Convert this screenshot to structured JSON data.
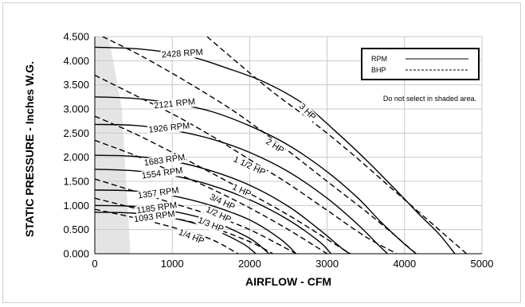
{
  "chart_data": {
    "type": "line",
    "xlabel": "AIRFLOW - CFM",
    "ylabel": "STATIC PRESSURE - Inches W.G.",
    "xlim": [
      0,
      5000
    ],
    "ylim": [
      0,
      4.5
    ],
    "x_ticks": [
      "0",
      "1000",
      "2000",
      "3000",
      "4000",
      "5000"
    ],
    "y_ticks": [
      "0.000",
      "0.500",
      "1.000",
      "1.500",
      "2.000",
      "2.500",
      "3.000",
      "3.500",
      "4.000",
      "4.500"
    ],
    "grid": true,
    "legend": {
      "position": "top-right",
      "entries": [
        {
          "label": "RPM",
          "style": "solid"
        },
        {
          "label": "BHP",
          "style": "dashed"
        }
      ]
    },
    "annotation": "Do not select in shaded area.",
    "shaded_region": {
      "x": [
        0,
        0,
        180,
        350,
        460,
        0
      ],
      "y": [
        0,
        4.5,
        4.5,
        3.0,
        0,
        0
      ]
    },
    "rpm_series": [
      {
        "name": "2428 RPM",
        "label_pos": {
          "x": 1130,
          "y": 4.16
        },
        "label_angle": -4,
        "x": [
          0,
          600,
          1200,
          1700,
          2200,
          2700,
          3100,
          3500,
          3900,
          4200,
          4450,
          4650
        ],
        "y": [
          4.28,
          4.24,
          4.1,
          3.85,
          3.55,
          3.1,
          2.55,
          1.95,
          1.3,
          0.8,
          0.4,
          0.0
        ]
      },
      {
        "name": "2121 RPM",
        "label_pos": {
          "x": 1030,
          "y": 3.12
        },
        "label_angle": -6,
        "x": [
          0,
          500,
          1000,
          1500,
          2000,
          2500,
          3000,
          3400,
          3700,
          4000,
          4150
        ],
        "y": [
          3.25,
          3.22,
          3.12,
          2.95,
          2.65,
          2.25,
          1.7,
          1.15,
          0.65,
          0.2,
          0.0
        ]
      },
      {
        "name": "1926 RPM",
        "label_pos": {
          "x": 960,
          "y": 2.62
        },
        "label_angle": -6,
        "x": [
          0,
          500,
          1000,
          1500,
          2000,
          2500,
          3000,
          3400,
          3650,
          3780
        ],
        "y": [
          2.68,
          2.66,
          2.56,
          2.38,
          2.1,
          1.7,
          1.15,
          0.6,
          0.2,
          0.0
        ]
      },
      {
        "name": "1683 RPM",
        "label_pos": {
          "x": 900,
          "y": 1.95
        },
        "label_angle": -8,
        "x": [
          0,
          500,
          1000,
          1500,
          2000,
          2500,
          2900,
          3200,
          3300
        ],
        "y": [
          2.04,
          2.02,
          1.92,
          1.72,
          1.42,
          0.98,
          0.5,
          0.1,
          0.0
        ]
      },
      {
        "name": "1554 RPM",
        "label_pos": {
          "x": 870,
          "y": 1.68
        },
        "label_angle": -8,
        "x": [
          0,
          500,
          1000,
          1500,
          2000,
          2500,
          2900,
          3050
        ],
        "y": [
          1.75,
          1.72,
          1.62,
          1.42,
          1.12,
          0.7,
          0.25,
          0.0
        ]
      },
      {
        "name": "1357 RPM",
        "label_pos": {
          "x": 820,
          "y": 1.27
        },
        "label_angle": -8,
        "x": [
          0,
          500,
          1000,
          1500,
          2000,
          2400,
          2600
        ],
        "y": [
          1.32,
          1.3,
          1.2,
          1.0,
          0.7,
          0.3,
          0.0
        ]
      },
      {
        "name": "1185 RPM",
        "label_pos": {
          "x": 800,
          "y": 0.96
        },
        "label_angle": -8,
        "x": [
          0,
          500,
          1000,
          1500,
          2000,
          2250
        ],
        "y": [
          1.0,
          0.98,
          0.88,
          0.68,
          0.32,
          0.0
        ]
      },
      {
        "name": "1093 RPM",
        "label_pos": {
          "x": 770,
          "y": 0.78
        },
        "label_angle": -8,
        "x": [
          0,
          500,
          1000,
          1500,
          1900,
          2080
        ],
        "y": [
          0.86,
          0.84,
          0.74,
          0.52,
          0.22,
          0.0
        ]
      }
    ],
    "bhp_series": [
      {
        "name": "3 HP",
        "label_pos": {
          "x": 2750,
          "y": 2.95
        },
        "label_angle": 45,
        "x": [
          1450,
          1850,
          2300,
          2800,
          3300,
          3800,
          4300,
          4800
        ],
        "y": [
          4.5,
          3.95,
          3.35,
          2.75,
          2.1,
          1.4,
          0.7,
          0.0
        ]
      },
      {
        "name": "2 HP",
        "label_pos": {
          "x": 2330,
          "y": 2.24
        },
        "label_angle": 33,
        "x": [
          100,
          600,
          1200,
          1800,
          2400,
          3000,
          3600,
          4150
        ],
        "y": [
          4.5,
          4.1,
          3.55,
          2.95,
          2.25,
          1.5,
          0.75,
          0.0
        ]
      },
      {
        "name": "1 1/2 HP",
        "label_pos": {
          "x": 2000,
          "y": 1.83
        },
        "label_angle": 25,
        "x": [
          0,
          500,
          1000,
          1500,
          2000,
          2500,
          3000,
          3500,
          3900
        ],
        "y": [
          3.7,
          3.3,
          2.9,
          2.45,
          1.95,
          1.45,
          0.9,
          0.35,
          0.0
        ]
      },
      {
        "name": "1 HP",
        "label_pos": {
          "x": 1900,
          "y": 1.32
        },
        "label_angle": 25,
        "x": [
          0,
          500,
          1000,
          1500,
          2000,
          2500,
          3000,
          3300
        ],
        "y": [
          2.85,
          2.5,
          2.1,
          1.68,
          1.25,
          0.8,
          0.3,
          0.0
        ]
      },
      {
        "name": "3/4 HP",
        "label_pos": {
          "x": 1650,
          "y": 1.08
        },
        "label_angle": 25,
        "x": [
          0,
          500,
          1000,
          1500,
          2000,
          2500,
          3000
        ],
        "y": [
          2.35,
          2.05,
          1.7,
          1.35,
          0.95,
          0.5,
          0.0
        ]
      },
      {
        "name": "1/2 HP",
        "label_pos": {
          "x": 1600,
          "y": 0.82
        },
        "label_angle": 25,
        "x": [
          0,
          500,
          1000,
          1500,
          2000,
          2600
        ],
        "y": [
          1.55,
          1.3,
          1.05,
          0.8,
          0.5,
          0.0
        ]
      },
      {
        "name": "1/3 HP",
        "label_pos": {
          "x": 1500,
          "y": 0.61
        },
        "label_angle": 22,
        "x": [
          0,
          500,
          1000,
          1500,
          2000,
          2300
        ],
        "y": [
          1.15,
          0.95,
          0.75,
          0.55,
          0.25,
          0.0
        ]
      },
      {
        "name": "1/4 HP",
        "label_pos": {
          "x": 1250,
          "y": 0.36
        },
        "label_angle": 22,
        "x": [
          0,
          500,
          1000,
          1500,
          1850
        ],
        "y": [
          0.92,
          0.75,
          0.55,
          0.3,
          0.0
        ]
      }
    ]
  }
}
